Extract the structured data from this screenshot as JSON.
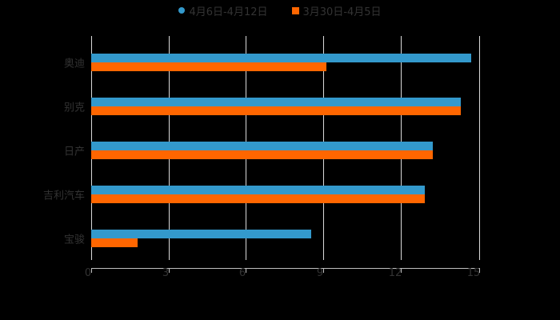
{
  "chart_data": {
    "type": "bar",
    "orientation": "horizontal",
    "title": "",
    "categories": [
      "奥迪",
      "别克",
      "日产",
      "吉利汽车",
      "宝骏"
    ],
    "series": [
      {
        "name": "4月6日-4月12日",
        "color": "#3399cc",
        "values": [
          14.7,
          14.3,
          13.2,
          12.9,
          8.5
        ]
      },
      {
        "name": "3月30日-4月5日",
        "color": "#ff6600",
        "values": [
          9.1,
          14.3,
          13.2,
          12.9,
          1.8
        ]
      }
    ],
    "xlabel": "",
    "ylabel": "",
    "xlim": [
      0,
      15
    ],
    "xticks": [
      0,
      3,
      6,
      9,
      12,
      15
    ],
    "grid": true,
    "legend_position": "top"
  },
  "legend": [
    {
      "label": "4月6日-4月12日",
      "color": "#3399cc",
      "shape": "circle"
    },
    {
      "label": "3月30日-4月5日",
      "color": "#ff6600",
      "shape": "square"
    }
  ],
  "axis": {
    "xticks": [
      "0",
      "3",
      "6",
      "9",
      "12",
      "15"
    ]
  },
  "categories": [
    "奥迪",
    "别克",
    "日产",
    "吉利汽车",
    "宝骏"
  ]
}
